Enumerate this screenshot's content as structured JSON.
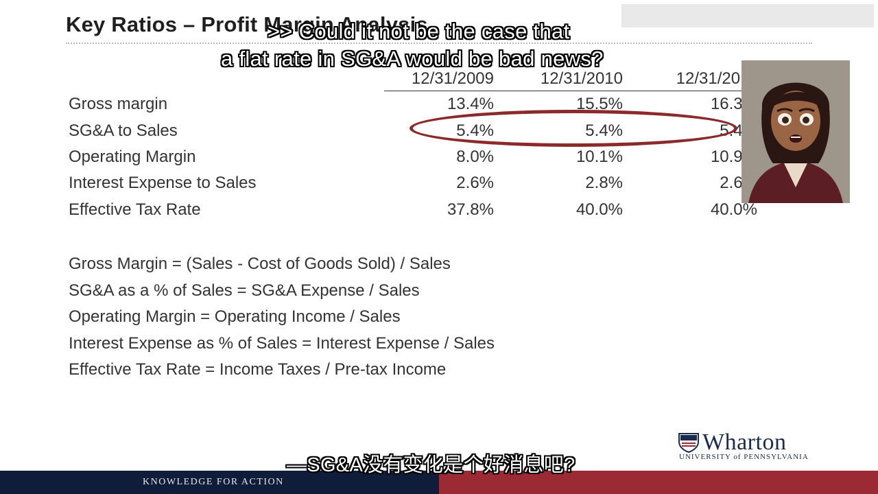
{
  "slide": {
    "title": "Key Ratios – Profit Margin Analysis"
  },
  "captions": {
    "line1": ">> Could it not be the case that",
    "line2": "a flat rate in SG&A would be bad news?",
    "bottom": "—SG&A没有变化是个好消息吧?"
  },
  "table": {
    "headers": [
      "12/31/2009",
      "12/31/2010",
      "12/31/2011"
    ],
    "rows": [
      {
        "label": "Gross margin",
        "values": [
          "13.4%",
          "15.5%",
          "16.3%"
        ]
      },
      {
        "label": "SG&A to Sales",
        "values": [
          "5.4%",
          "5.4%",
          "5.4%"
        ]
      },
      {
        "label": "Operating Margin",
        "values": [
          "8.0%",
          "10.1%",
          "10.9%"
        ]
      },
      {
        "label": "Interest Expense to Sales",
        "values": [
          "2.6%",
          "2.8%",
          "2.6%"
        ]
      },
      {
        "label": "Effective Tax Rate",
        "values": [
          "37.8%",
          "40.0%",
          "40.0%"
        ]
      }
    ]
  },
  "formulas": [
    "Gross Margin = (Sales - Cost of Goods Sold) / Sales",
    "SG&A as a % of Sales = SG&A Expense / Sales",
    "Operating Margin = Operating Income / Sales",
    "Interest Expense as % of Sales = Interest Expense / Sales",
    "Effective Tax Rate = Income Taxes / Pre-tax Income"
  ],
  "branding": {
    "logo_name": "Wharton",
    "logo_subtitle": "UNIVERSITY of PENNSYLVANIA",
    "footer_tagline": "KNOWLEDGE FOR ACTION"
  },
  "colors": {
    "highlight": "#8b2a2a",
    "footer_navy": "#0f1d3b",
    "footer_red": "#9b2a35",
    "logo_navy": "#1a2b4c"
  }
}
